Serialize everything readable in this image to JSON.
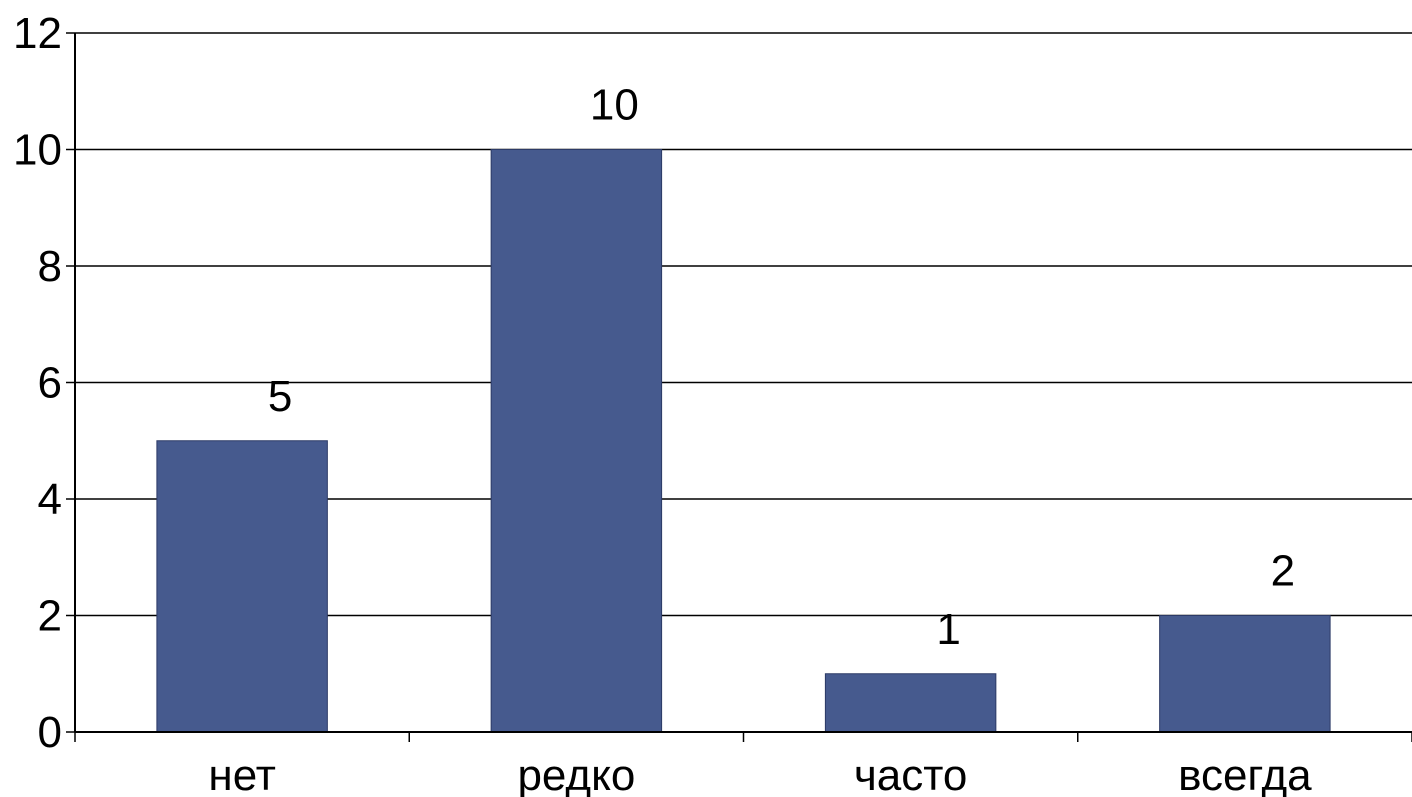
{
  "chart_data": {
    "type": "bar",
    "categories": [
      "нет",
      "редко",
      "часто",
      "всегда"
    ],
    "values": [
      5,
      10,
      1,
      2
    ],
    "data_labels": [
      "5",
      "10",
      "1",
      "2"
    ],
    "title": "",
    "xlabel": "",
    "ylabel": "",
    "ylim": [
      0,
      12
    ],
    "yticks": [
      0,
      2,
      4,
      6,
      8,
      10,
      12
    ],
    "ytick_labels": [
      "0",
      "2",
      "4",
      "6",
      "8",
      "10",
      "12"
    ],
    "grid": true,
    "legend": "none",
    "colors": {
      "bar": "#465a8e",
      "bar_edge": "#2c3a66",
      "grid": "#000000",
      "axis": "#000000"
    }
  }
}
